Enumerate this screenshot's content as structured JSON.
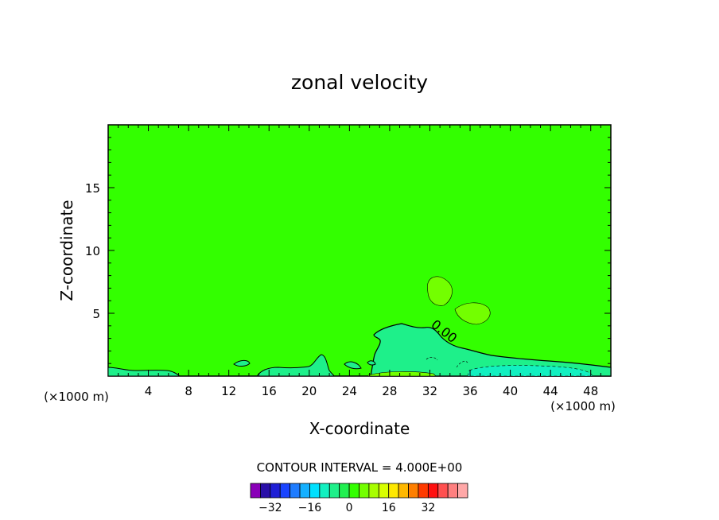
{
  "chart_data": {
    "type": "contour",
    "title": "zonal velocity",
    "xlabel": "X-coordinate",
    "ylabel": "Z-coordinate",
    "x_unit_left": "(×1000 m)",
    "x_unit_right": "(×1000 m)",
    "xlim": [
      0,
      50
    ],
    "ylim": [
      0,
      20
    ],
    "x_ticks": [
      4,
      8,
      12,
      16,
      20,
      24,
      28,
      32,
      36,
      40,
      44,
      48
    ],
    "y_ticks": [
      5,
      10,
      15
    ],
    "contour_label": "0.00",
    "contour_interval_text": "CONTOUR INTERVAL = 4.000E+00",
    "background_color": "#33ff00",
    "colorbar": {
      "colors": [
        "#8a00b8",
        "#2a0fa8",
        "#1f1fd6",
        "#1a44ff",
        "#1e7cff",
        "#14b0ff",
        "#00e0ff",
        "#12f0c0",
        "#1ef08a",
        "#20f050",
        "#33ff00",
        "#73ff00",
        "#a8ff00",
        "#d8ff00",
        "#ffe800",
        "#ffb800",
        "#ff7f00",
        "#ff3a00",
        "#ff1010",
        "#ff5050",
        "#ff8080",
        "#ffa8a8"
      ],
      "tick_values": [
        -32,
        -16,
        0,
        16,
        32
      ],
      "tick_labels": [
        "−32",
        "−16",
        "0",
        "16",
        "32"
      ]
    }
  }
}
